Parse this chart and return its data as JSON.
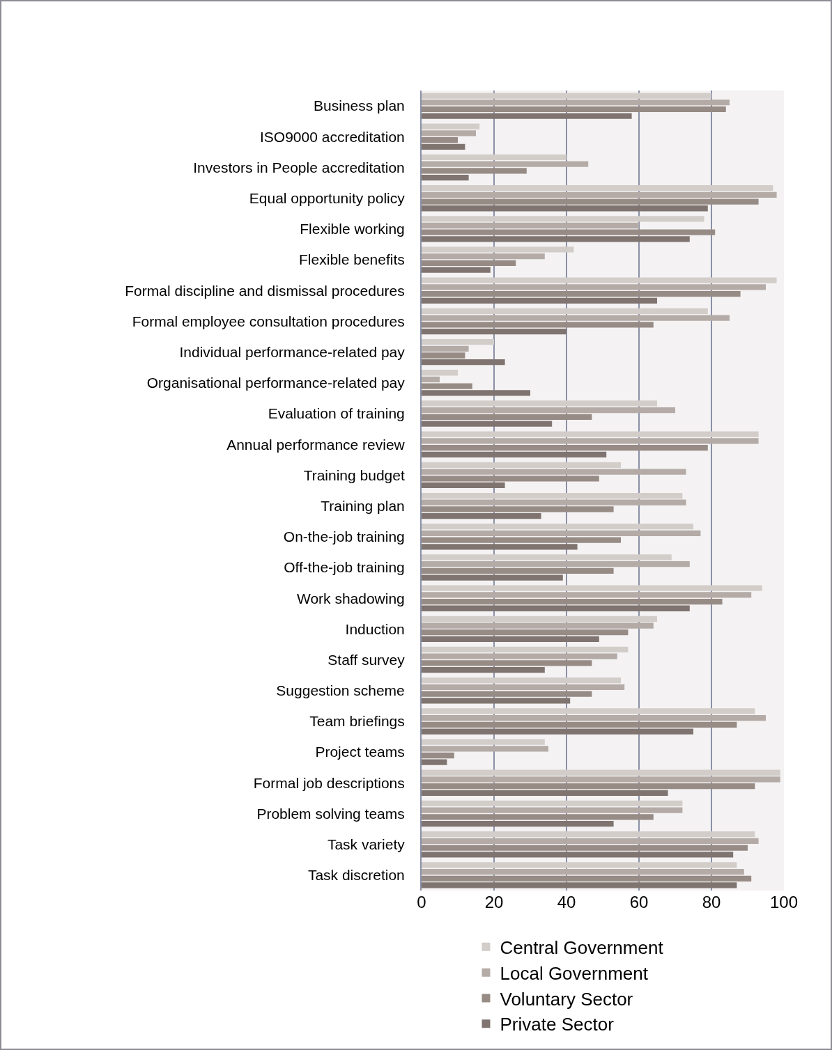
{
  "chart_data": {
    "type": "bar",
    "orientation": "horizontal",
    "categories": [
      "Business plan",
      "ISO9000 accreditation",
      "Investors in People accreditation",
      "Equal opportunity policy",
      "Flexible working",
      "Flexible benefits",
      "Formal discipline and dismissal procedures",
      "Formal employee consultation procedures",
      "Individual performance-related pay",
      "Organisational performance-related pay",
      "Evaluation of training",
      "Annual performance review",
      "Training budget",
      "Training plan",
      "On-the-job training",
      "Off-the-job training",
      "Work shadowing",
      "Induction",
      "Staff survey",
      "Suggestion scheme",
      "Team briefings",
      "Project teams",
      "Formal job descriptions",
      "Problem solving teams",
      "Task variety",
      "Task discretion"
    ],
    "series": [
      {
        "name": "Central Government",
        "color": "#d3cdca",
        "values": [
          80,
          16,
          40,
          97,
          78,
          42,
          98,
          79,
          20,
          10,
          65,
          93,
          55,
          72,
          75,
          69,
          94,
          65,
          57,
          55,
          92,
          34,
          99,
          72,
          92,
          87
        ]
      },
      {
        "name": "Local Government",
        "color": "#b4aba7",
        "values": [
          85,
          15,
          46,
          98,
          60,
          34,
          95,
          85,
          13,
          5,
          70,
          93,
          73,
          73,
          77,
          74,
          91,
          64,
          54,
          56,
          95,
          35,
          99,
          72,
          93,
          89
        ]
      },
      {
        "name": "Voluntary Sector",
        "color": "#978b85",
        "values": [
          84,
          10,
          29,
          93,
          81,
          26,
          88,
          64,
          12,
          14,
          47,
          79,
          49,
          53,
          55,
          53,
          83,
          57,
          47,
          47,
          87,
          9,
          92,
          64,
          90,
          91
        ]
      },
      {
        "name": "Private Sector",
        "color": "#7f7470",
        "values": [
          58,
          12,
          13,
          79,
          74,
          19,
          65,
          40,
          23,
          30,
          36,
          51,
          23,
          33,
          43,
          39,
          74,
          49,
          34,
          41,
          75,
          7,
          68,
          53,
          86,
          87
        ]
      }
    ],
    "xlim": [
      0,
      100
    ],
    "xticks": [
      0,
      20,
      40,
      60,
      80,
      100
    ],
    "grid": "x",
    "legend": "bottom"
  }
}
